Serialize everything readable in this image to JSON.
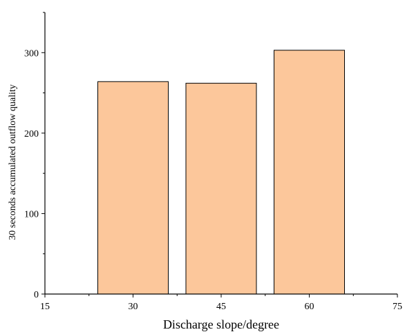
{
  "chart_data": {
    "type": "bar",
    "x": [
      30,
      45,
      60
    ],
    "values": [
      264,
      262,
      303
    ],
    "xlabel": "Discharge slope/degree",
    "ylabel": "30 seconds accumulated outflow quality",
    "xlim": [
      15,
      75
    ],
    "ylim": [
      0,
      350
    ],
    "x_ticks": [
      "15",
      "30",
      "45",
      "60",
      "75"
    ],
    "y_ticks": [
      "0",
      "100",
      "200",
      "300"
    ],
    "grid": false,
    "legend": "none",
    "colors": {
      "bar_fill": "#fcc79b",
      "bar_stroke": "#000000",
      "axis": "#000000"
    }
  }
}
